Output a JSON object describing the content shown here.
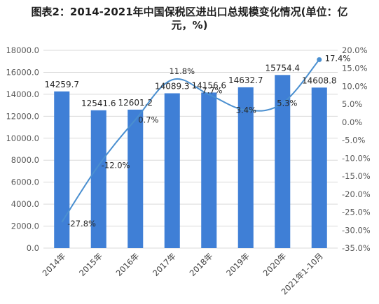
{
  "chart_data": {
    "type": "bar",
    "title": "图表2：2014-2021年中国保税区进出口总规模变化情况(单位：亿元，%)",
    "title_lines": [
      "图表2：2014-2021年中国保税区进出口总规模变化情况(单位：亿",
      "元，%)"
    ],
    "categories": [
      "2014年",
      "2015年",
      "2016年",
      "2017年",
      "2018年",
      "2019年",
      "2020年",
      "2021年1-10月"
    ],
    "series": [
      {
        "type": "bar",
        "values": [
          14259.7,
          12541.6,
          12601.2,
          14089.3,
          14156.6,
          14632.7,
          15754.4,
          14608.8
        ],
        "labels": [
          "14259.7",
          "12541.6",
          "12601.2",
          "14089.3",
          "14156.6",
          "14632.7",
          "15754.4",
          "14608.8"
        ],
        "color": "#3f7fd6",
        "axis": "left"
      },
      {
        "type": "line",
        "values": [
          -27.8,
          -12.0,
          0.7,
          11.8,
          7.7,
          3.4,
          5.3,
          17.4
        ],
        "labels": [
          "-27.8%",
          "-12.0%",
          "0.7%",
          "11.8%",
          "7.7%",
          "3.4%",
          "5.3%",
          "17.4%"
        ],
        "color": "#4a8fd0",
        "axis": "right"
      }
    ],
    "left_axis": {
      "min": 0,
      "max": 18000,
      "step": 2000,
      "ticks": [
        "0.0",
        "2000.0",
        "4000.0",
        "6000.0",
        "8000.0",
        "10000.0",
        "12000.0",
        "14000.0",
        "16000.0",
        "18000.0"
      ]
    },
    "right_axis": {
      "min": -35,
      "max": 20,
      "step": 5,
      "ticks": [
        "-35.0%",
        "-30.0%",
        "-25.0%",
        "-20.0%",
        "-15.0%",
        "-10.0%",
        "-5.0%",
        "0.0%",
        "5.0%",
        "10.0%",
        "15.0%",
        "20.0%"
      ]
    },
    "grid": true,
    "legend": "none"
  }
}
